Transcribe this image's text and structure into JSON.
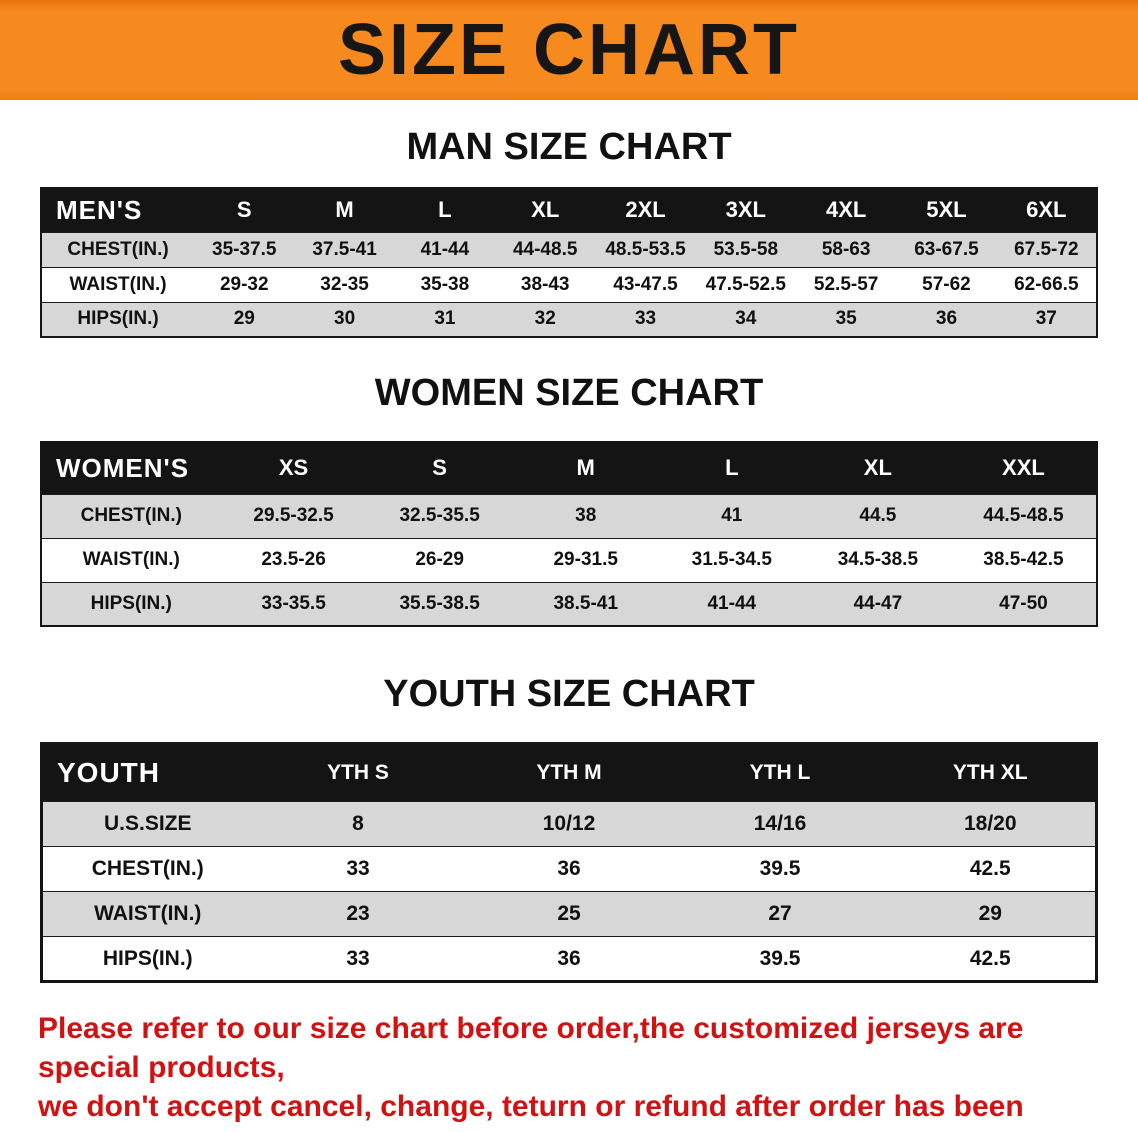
{
  "banner": {
    "title": "SIZE CHART",
    "bg_color": "#f68a1f",
    "text_color": "#161616"
  },
  "sections": [
    {
      "title": "MAN SIZE CHART",
      "table": {
        "header": [
          "MEN'S",
          "S",
          "M",
          "L",
          "XL",
          "2XL",
          "3XL",
          "4XL",
          "5XL",
          "6XL"
        ],
        "rows": [
          {
            "label": "CHEST(IN.)",
            "values": [
              "35-37.5",
              "37.5-41",
              "41-44",
              "44-48.5",
              "48.5-53.5",
              "53.5-58",
              "58-63",
              "63-67.5",
              "67.5-72"
            ]
          },
          {
            "label": "WAIST(IN.)",
            "values": [
              "29-32",
              "32-35",
              "35-38",
              "38-43",
              "43-47.5",
              "47.5-52.5",
              "52.5-57",
              "57-62",
              "62-66.5"
            ]
          },
          {
            "label": "HIPS(IN.)",
            "values": [
              "29",
              "30",
              "31",
              "32",
              "33",
              "34",
              "35",
              "36",
              "37"
            ]
          }
        ]
      }
    },
    {
      "title": "WOMEN SIZE CHART",
      "table": {
        "header": [
          "WOMEN'S",
          "XS",
          "S",
          "M",
          "L",
          "XL",
          "XXL"
        ],
        "rows": [
          {
            "label": "CHEST(IN.)",
            "values": [
              "29.5-32.5",
              "32.5-35.5",
              "38",
              "41",
              "44.5",
              "44.5-48.5"
            ]
          },
          {
            "label": "WAIST(IN.)",
            "values": [
              "23.5-26",
              "26-29",
              "29-31.5",
              "31.5-34.5",
              "34.5-38.5",
              "38.5-42.5"
            ]
          },
          {
            "label": "HIPS(IN.)",
            "values": [
              "33-35.5",
              "35.5-38.5",
              "38.5-41",
              "41-44",
              "44-47",
              "47-50"
            ]
          }
        ]
      }
    },
    {
      "title": "YOUTH SIZE CHART",
      "table": {
        "header": [
          "YOUTH",
          "YTH S",
          "YTH M",
          "YTH L",
          "YTH XL"
        ],
        "rows": [
          {
            "label": "U.S.SIZE",
            "values": [
              "8",
              "10/12",
              "14/16",
              "18/20"
            ]
          },
          {
            "label": "CHEST(IN.)",
            "values": [
              "33",
              "36",
              "39.5",
              "42.5"
            ]
          },
          {
            "label": "WAIST(IN.)",
            "values": [
              "23",
              "25",
              "27",
              "29"
            ]
          },
          {
            "label": "HIPS(IN.)",
            "values": [
              "33",
              "36",
              "39.5",
              "42.5"
            ]
          }
        ]
      }
    }
  ],
  "footer": {
    "line1": "Please refer to our size chart before order,the customized jerseys are special products,",
    "line2": "we don't accept cancel, change, teturn or refund after order has been placed!",
    "text_color": "#d01212"
  }
}
